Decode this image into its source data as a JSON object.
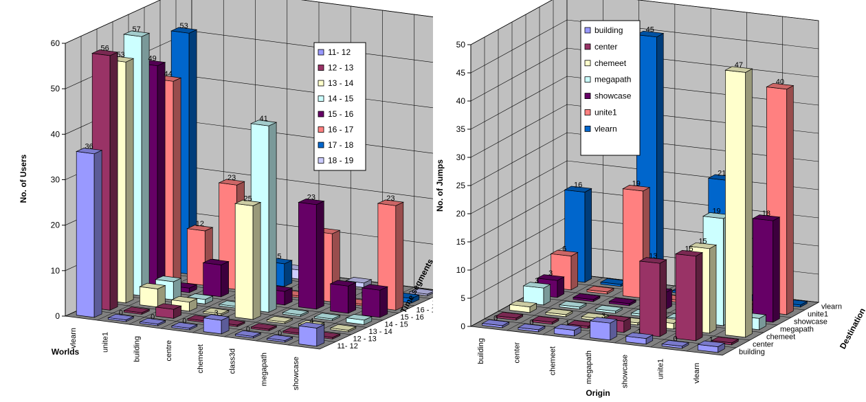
{
  "chart_data": [
    {
      "type": "bar",
      "xlabel": "Worlds",
      "ylabel": "No. of Users",
      "zlabel": "Time segments",
      "ylim": [
        0,
        60
      ],
      "yticks": [
        "0",
        "10",
        "20",
        "30",
        "40",
        "50",
        "60"
      ],
      "categories": [
        "vlearn",
        "unite1",
        "building",
        "centre",
        "chemeet",
        "class3d",
        "megapath",
        "showcase"
      ],
      "depth_labels": [
        "11- 12",
        "12 - 13",
        "13 - 14",
        "14 - 15",
        "15 - 16",
        "16 - 17",
        "17 - 18",
        "18 - 19"
      ],
      "legend_position": "top-right",
      "series": [
        {
          "name": "11- 12",
          "color": "#9999ff",
          "values": [
            36,
            0,
            0,
            0,
            3,
            0,
            0,
            4
          ]
        },
        {
          "name": "12 - 13",
          "color": "#993366",
          "values": [
            56,
            0,
            2,
            0,
            0,
            0,
            0,
            0
          ]
        },
        {
          "name": "13 - 14",
          "color": "#ffffcc",
          "values": [
            53,
            4,
            2,
            0,
            25,
            0,
            0,
            0
          ]
        },
        {
          "name": "14 - 15",
          "color": "#ccffff",
          "values": [
            57,
            4,
            1,
            0,
            41,
            0,
            0,
            1
          ]
        },
        {
          "name": "15 - 16",
          "color": "#660066",
          "values": [
            49,
            1,
            7,
            0,
            3,
            23,
            6,
            6
          ]
        },
        {
          "name": "16 - 17",
          "color": "#ff8080",
          "values": [
            44,
            12,
            23,
            0,
            0,
            15,
            0,
            23
          ]
        },
        {
          "name": "17 - 18",
          "color": "#0066cc",
          "values": [
            53,
            3,
            0,
            5,
            0,
            0,
            1,
            1
          ]
        },
        {
          "name": "18 - 19",
          "color": "#ccccff",
          "values": [
            0,
            0,
            0,
            2,
            0,
            1,
            0,
            0
          ]
        }
      ],
      "visible_labels": [
        {
          "series": 0,
          "cat": 0,
          "text": "36"
        },
        {
          "series": 0,
          "cat": 1,
          "text": "0"
        },
        {
          "series": 0,
          "cat": 2,
          "text": "0"
        },
        {
          "series": 0,
          "cat": 3,
          "text": "0"
        },
        {
          "series": 0,
          "cat": 4,
          "text": "3"
        },
        {
          "series": 0,
          "cat": 5,
          "text": "0"
        },
        {
          "series": 0,
          "cat": 6,
          "text": "0"
        },
        {
          "series": 0,
          "cat": 7,
          "text": "4"
        },
        {
          "series": 1,
          "cat": 0,
          "text": "56"
        },
        {
          "series": 2,
          "cat": 0,
          "text": "53"
        },
        {
          "series": 2,
          "cat": 4,
          "text": "25"
        },
        {
          "series": 3,
          "cat": 0,
          "text": "57"
        },
        {
          "series": 3,
          "cat": 4,
          "text": "41"
        },
        {
          "series": 4,
          "cat": 0,
          "text": "49"
        },
        {
          "series": 4,
          "cat": 5,
          "text": "23"
        },
        {
          "series": 5,
          "cat": 0,
          "text": "44"
        },
        {
          "series": 5,
          "cat": 1,
          "text": "12"
        },
        {
          "series": 5,
          "cat": 2,
          "text": "23"
        },
        {
          "series": 5,
          "cat": 7,
          "text": "23"
        },
        {
          "series": 6,
          "cat": 0,
          "text": "53"
        },
        {
          "series": 6,
          "cat": 3,
          "text": "5"
        }
      ]
    },
    {
      "type": "bar",
      "xlabel": "Origin",
      "ylabel": "No. of Jumps",
      "zlabel": "Destination",
      "ylim": [
        0,
        50
      ],
      "yticks": [
        "0",
        "5",
        "10",
        "15",
        "20",
        "25",
        "30",
        "35",
        "40",
        "45",
        "50"
      ],
      "categories": [
        "building",
        "center",
        "chemeet",
        "megapath",
        "showcase",
        "unite1",
        "vlearn"
      ],
      "depth_labels": [
        "building",
        "center",
        "chemeet",
        "megapath",
        "showcase",
        "unite1",
        "vlearn"
      ],
      "legend_position": "top-left",
      "series": [
        {
          "name": "building",
          "color": "#9999ff",
          "values": [
            0,
            0,
            1,
            3,
            1,
            0,
            1
          ]
        },
        {
          "name": "center",
          "color": "#993366",
          "values": [
            0,
            0,
            0,
            2,
            13,
            15,
            0
          ]
        },
        {
          "name": "chemeet",
          "color": "#ffffcc",
          "values": [
            1,
            0,
            0,
            0,
            1,
            15,
            47
          ]
        },
        {
          "name": "megapath",
          "color": "#ccffff",
          "values": [
            3,
            0,
            0,
            0,
            0,
            19,
            2
          ]
        },
        {
          "name": "showcase",
          "color": "#660066",
          "values": [
            3,
            0,
            0,
            3,
            0,
            1,
            18
          ]
        },
        {
          "name": "unite1",
          "color": "#ff8080",
          "values": [
            6,
            0,
            19,
            0,
            0,
            1,
            40
          ]
        },
        {
          "name": "vlearn",
          "color": "#0066cc",
          "values": [
            16,
            0,
            45,
            0,
            21,
            0,
            0
          ]
        }
      ],
      "visible_labels": [
        {
          "series": 0,
          "cat": 0,
          "text": "0"
        },
        {
          "series": 0,
          "cat": 1,
          "text": "0"
        },
        {
          "series": 0,
          "cat": 2,
          "text": "1"
        },
        {
          "series": 0,
          "cat": 3,
          "text": "3"
        },
        {
          "series": 0,
          "cat": 4,
          "text": "1"
        },
        {
          "series": 0,
          "cat": 5,
          "text": "0"
        },
        {
          "series": 0,
          "cat": 6,
          "text": "1"
        },
        {
          "series": 1,
          "cat": 4,
          "text": "13"
        },
        {
          "series": 1,
          "cat": 5,
          "text": "15"
        },
        {
          "series": 2,
          "cat": 5,
          "text": "15"
        },
        {
          "series": 2,
          "cat": 6,
          "text": "47"
        },
        {
          "series": 3,
          "cat": 0,
          "text": "3"
        },
        {
          "series": 3,
          "cat": 5,
          "text": "19"
        },
        {
          "series": 4,
          "cat": 0,
          "text": "3"
        },
        {
          "series": 4,
          "cat": 6,
          "text": "18"
        },
        {
          "series": 5,
          "cat": 0,
          "text": "6"
        },
        {
          "series": 5,
          "cat": 2,
          "text": "19"
        },
        {
          "series": 5,
          "cat": 6,
          "text": "40"
        },
        {
          "series": 6,
          "cat": 0,
          "text": "16"
        },
        {
          "series": 6,
          "cat": 2,
          "text": "45"
        },
        {
          "series": 6,
          "cat": 4,
          "text": "21"
        }
      ]
    }
  ]
}
